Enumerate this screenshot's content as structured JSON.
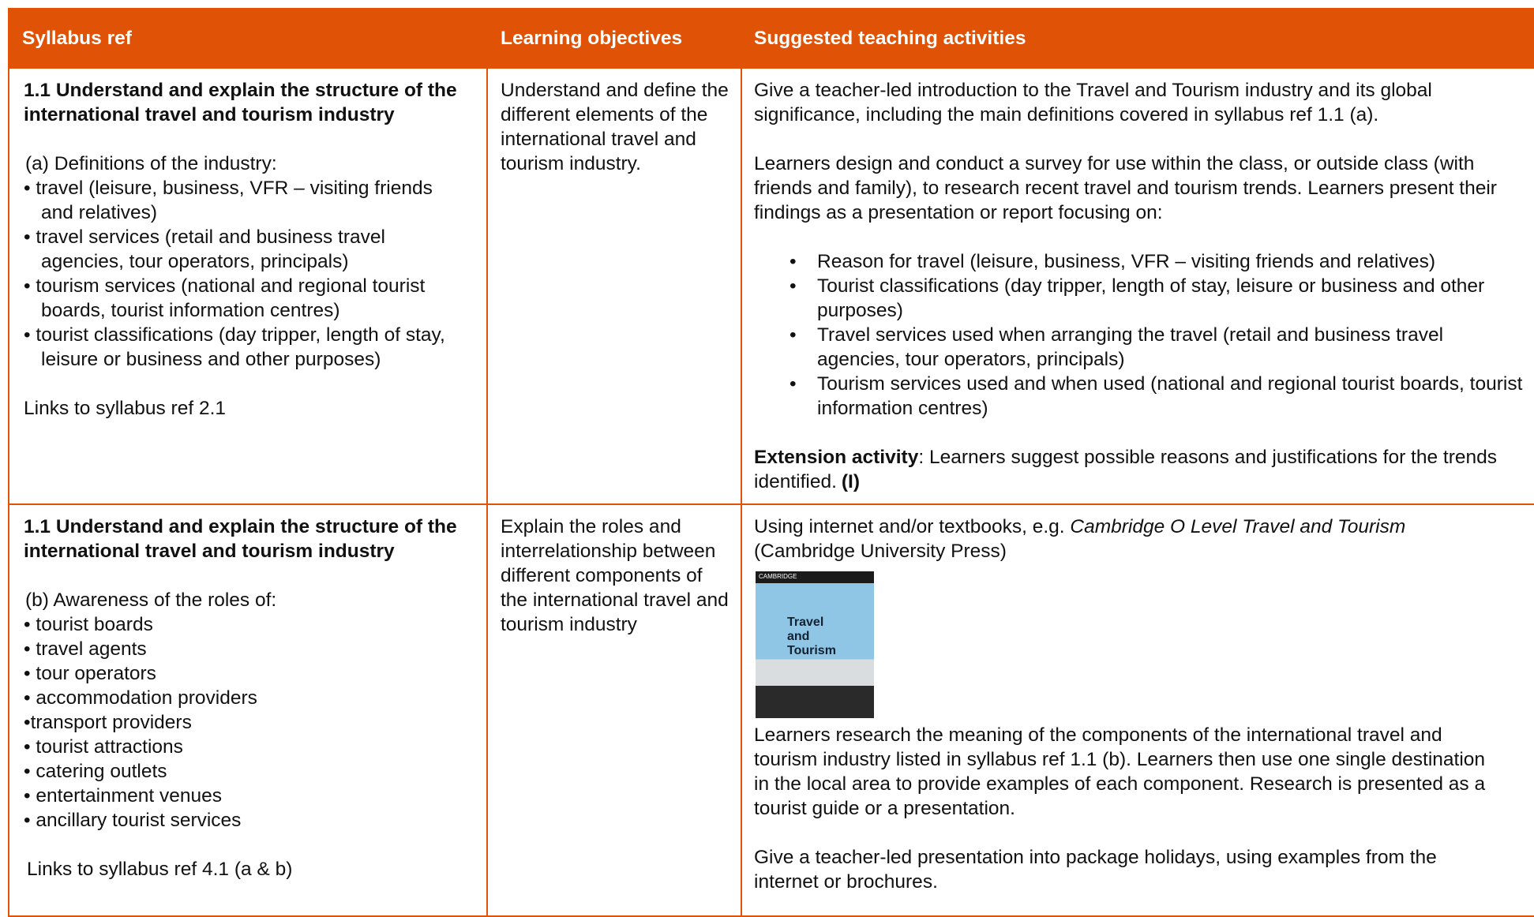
{
  "table": {
    "header": [
      "Syllabus ref",
      "Learning objectives",
      "Suggested teaching activities"
    ],
    "rows": [
      {
        "ref": {
          "title": "1.1 Understand and explain the structure of the international travel and tourism industry",
          "intro": "(a) Definitions of the industry:",
          "items": [
            "• travel (leisure, business, VFR – visiting friends and relatives)",
            "• travel services (retail and business travel agencies, tour operators, principals)",
            "• tourism services (national and regional tourist boards, tourist information centres)",
            "• tourist classifications (day tripper, length of stay, leisure or business and other purposes)"
          ],
          "link": "Links to syllabus ref 2.1"
        },
        "objective": "Understand and define the different elements of the international travel and tourism industry.",
        "activities": {
          "intro": "Give a teacher-led introduction to the Travel and Tourism industry and its global significance, including the main definitions covered in syllabus ref 1.1 (a).",
          "task": "Learners design and conduct a survey for use within the class, or outside class (with friends and family), to research recent travel and tourism trends. Learners present their findings as a presentation or report focusing on:",
          "bullets": [
            "Reason for travel (leisure, business, VFR – visiting friends and relatives)",
            "Tourist classifications (day tripper, length of stay, leisure or business and other purposes)",
            "Travel services used when arranging the travel (retail and business travel agencies, tour operators, principals)",
            "Tourism services used and when used (national and regional tourist boards, tourist information centres)"
          ],
          "extension": {
            "label": "Extension activity",
            "text": ": Learners suggest possible reasons and justifications for the trends identified.",
            "tag": "(I)"
          }
        }
      },
      {
        "ref": {
          "title": "1.1 Understand and explain the structure of the international travel and tourism industry",
          "intro": "(b) Awareness of the roles of:",
          "items": [
            "• tourist boards",
            "• travel agents",
            "• tour operators",
            "• accommodation providers",
            "•transport providers",
            "• tourist attractions",
            "• catering outlets",
            "• entertainment venues",
            "• ancillary tourist services"
          ],
          "link": "Links to syllabus ref 4.1 (a & b)"
        },
        "objective": "Explain the roles and interrelationship between different components of the international travel and tourism industry",
        "activities": {
          "lead": "Using internet and/or textbooks, e.g.",
          "book": "Cambridge O Level Travel and Tourism",
          "publisher": "(Cambridge University Press)",
          "cover": {
            "brand": "CAMBRIDGE",
            "title": "Travel and Tourism"
          },
          "research": "Learners research the meaning of the components of the international travel and tourism industry listed in syllabus ref 1.1 (b). Learners then use one single destination in the local area to provide examples of each component. Research is presented as a tourist guide or a presentation.",
          "presentation": "Give a teacher-led presentation into package holidays, using examples from the internet or brochures."
        }
      }
    ]
  }
}
